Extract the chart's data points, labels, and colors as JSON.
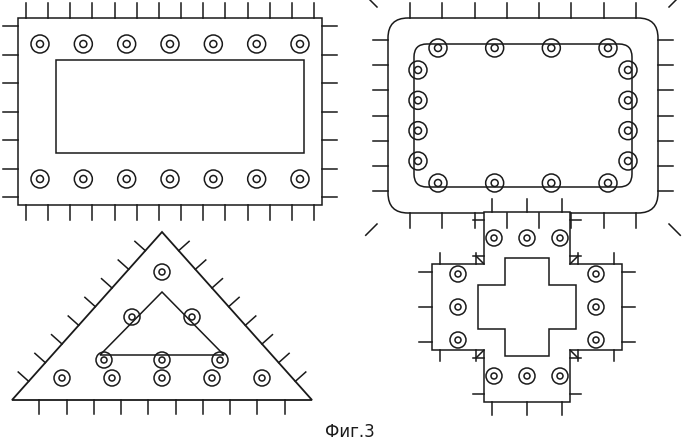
{
  "bg_color": "#ffffff",
  "line_color": "#1a1a1a",
  "title": "Фиг.3",
  "title_fontsize": 12
}
